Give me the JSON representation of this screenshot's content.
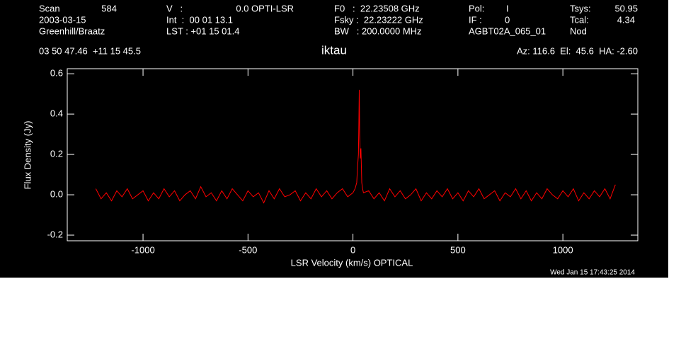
{
  "header": {
    "scan_label": "Scan",
    "scan": "584",
    "date": "2003-03-15",
    "observer": "Greenhill/Braatz",
    "v_label": "V   :",
    "v": "0.0 OPTI-LSR",
    "int": "Int  :  00 01 13.1",
    "lst": "LST : +01 15 01.4",
    "f0": "F0   :  22.23508 GHz",
    "fsky": "Fsky :  22.23222 GHz",
    "bw": "BW   : 200.0000 MHz",
    "pol_label": "Pol:",
    "pol": "I",
    "if_label": "IF :",
    "if": "0",
    "project": "AGBT02A_065_01",
    "tsys_label": "Tsys:",
    "tsys": "50.95",
    "tcal_label": "Tcal:",
    "tcal": "4.34",
    "mode": "Nod",
    "coords": "03 50 47.46  +11 15 45.5",
    "azel": "Az: 116.6  El:  45.6  HA: -2.60",
    "timestamp": "Wed Jan 15 17:43:25 2014"
  },
  "chart_data": {
    "type": "line",
    "title": "iktau",
    "x_label": "LSR Velocity (km/s) OPTICAL",
    "y_label": "Flux Density (Jy)",
    "color": "#ff0000",
    "x": [
      -1225,
      -1200,
      -1175,
      -1150,
      -1125,
      -1100,
      -1075,
      -1050,
      -1025,
      -1000,
      -975,
      -950,
      -925,
      -900,
      -875,
      -850,
      -825,
      -800,
      -775,
      -750,
      -725,
      -700,
      -675,
      -650,
      -625,
      -600,
      -575,
      -550,
      -525,
      -500,
      -475,
      -450,
      -425,
      -400,
      -375,
      -350,
      -325,
      -300,
      -275,
      -250,
      -225,
      -200,
      -175,
      -150,
      -125,
      -100,
      -75,
      -50,
      -25,
      0,
      10,
      18,
      22,
      26,
      28,
      30,
      32,
      35,
      38,
      42,
      46,
      50,
      75,
      100,
      125,
      150,
      175,
      200,
      225,
      250,
      275,
      300,
      325,
      350,
      375,
      400,
      425,
      450,
      475,
      500,
      525,
      550,
      575,
      600,
      625,
      650,
      675,
      700,
      725,
      750,
      775,
      800,
      825,
      850,
      875,
      900,
      925,
      950,
      975,
      1000,
      1025,
      1050,
      1075,
      1100,
      1125,
      1150,
      1175,
      1200,
      1225,
      1250
    ],
    "values": [
      0.03,
      -0.02,
      0.01,
      -0.03,
      0.02,
      -0.01,
      0.03,
      -0.02,
      0.0,
      0.02,
      -0.03,
      0.01,
      -0.02,
      0.03,
      -0.01,
      0.02,
      -0.03,
      0.0,
      0.02,
      -0.02,
      0.04,
      -0.01,
      0.01,
      -0.03,
      0.02,
      -0.02,
      0.03,
      0.0,
      -0.03,
      0.02,
      -0.01,
      0.01,
      -0.04,
      0.02,
      -0.02,
      0.03,
      -0.01,
      0.0,
      0.02,
      -0.03,
      0.01,
      -0.02,
      0.03,
      -0.01,
      0.02,
      -0.02,
      0.01,
      0.03,
      -0.01,
      0.01,
      0.03,
      0.06,
      0.14,
      0.2,
      0.35,
      0.52,
      0.3,
      0.18,
      0.23,
      0.06,
      0.03,
      0.01,
      0.02,
      -0.02,
      0.01,
      -0.03,
      0.03,
      -0.01,
      0.02,
      -0.02,
      0.0,
      0.03,
      -0.03,
      0.01,
      -0.02,
      0.02,
      -0.01,
      0.03,
      -0.02,
      0.01,
      -0.03,
      0.02,
      -0.01,
      0.03,
      -0.02,
      0.0,
      0.02,
      -0.03,
      0.01,
      -0.01,
      0.03,
      -0.02,
      0.02,
      -0.03,
      0.01,
      -0.02,
      0.03,
      0.0,
      -0.02,
      0.02,
      -0.01,
      0.03,
      -0.03,
      0.01,
      -0.02,
      0.02,
      -0.01,
      0.03,
      -0.02,
      0.05
    ],
    "xlim": [
      -1361,
      1357
    ],
    "xticks": [
      -1000,
      -500,
      0,
      500,
      1000
    ],
    "ylim": [
      -0.228,
      0.625
    ],
    "yticks": [
      -0.2,
      {
        "value": 0,
        "label": "0.0"
      },
      0.2,
      0.4,
      0.6
    ]
  }
}
